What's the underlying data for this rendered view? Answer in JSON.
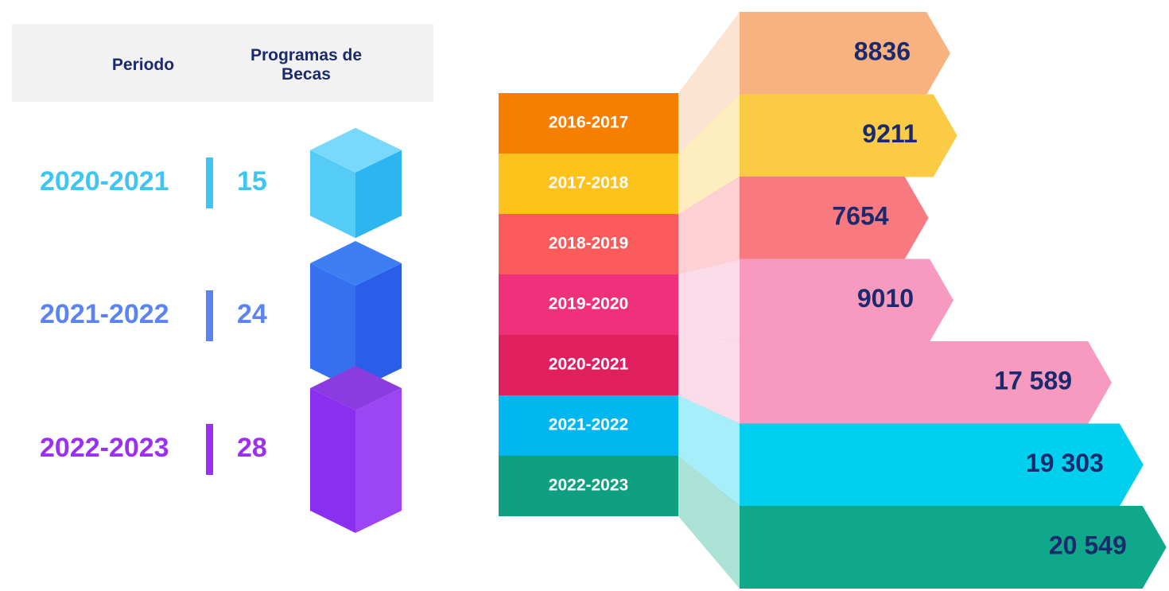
{
  "chart_data": [
    {
      "type": "cubes",
      "headers": [
        "Periodo",
        "Programas de Becas"
      ],
      "categories": [
        "2020-2021",
        "2021-2022",
        "2022-2023"
      ],
      "values": [
        15,
        24,
        28
      ],
      "colors": [
        "#3fc5f0",
        "#5b84f0",
        "#9b30f0"
      ],
      "face_colors": [
        [
          "#7ad8fb",
          "#2cb6f0",
          "#55ccf6"
        ],
        [
          "#3d7ef5",
          "#2a5ee8",
          "#3470f0"
        ],
        [
          "#8a3ce0",
          "#9b45f5",
          "#8a2ff0"
        ]
      ]
    },
    {
      "type": "arrow-bar",
      "categories": [
        "2016-2017",
        "2017-2018",
        "2018-2019",
        "2019-2020",
        "2020-2021",
        "2021-2022",
        "2022-2023"
      ],
      "values": [
        8836,
        9211,
        7654,
        9010,
        17589,
        19303,
        20549
      ],
      "value_labels": [
        "8836",
        "9211",
        "7654",
        "9010",
        "17 589",
        "19 303",
        "20 549"
      ],
      "label_colors": [
        "#f77f00",
        "#fdc21b",
        "#fb5a5a",
        "#f0307a",
        "#e0205e",
        "#00b7f0",
        "#0ea080"
      ],
      "bar_colors": [
        "#f7b27f",
        "#fbcb45",
        "#f87a80",
        "#f89ac0",
        "#f89ac0",
        "#00cfee",
        "#10a88a"
      ]
    }
  ]
}
